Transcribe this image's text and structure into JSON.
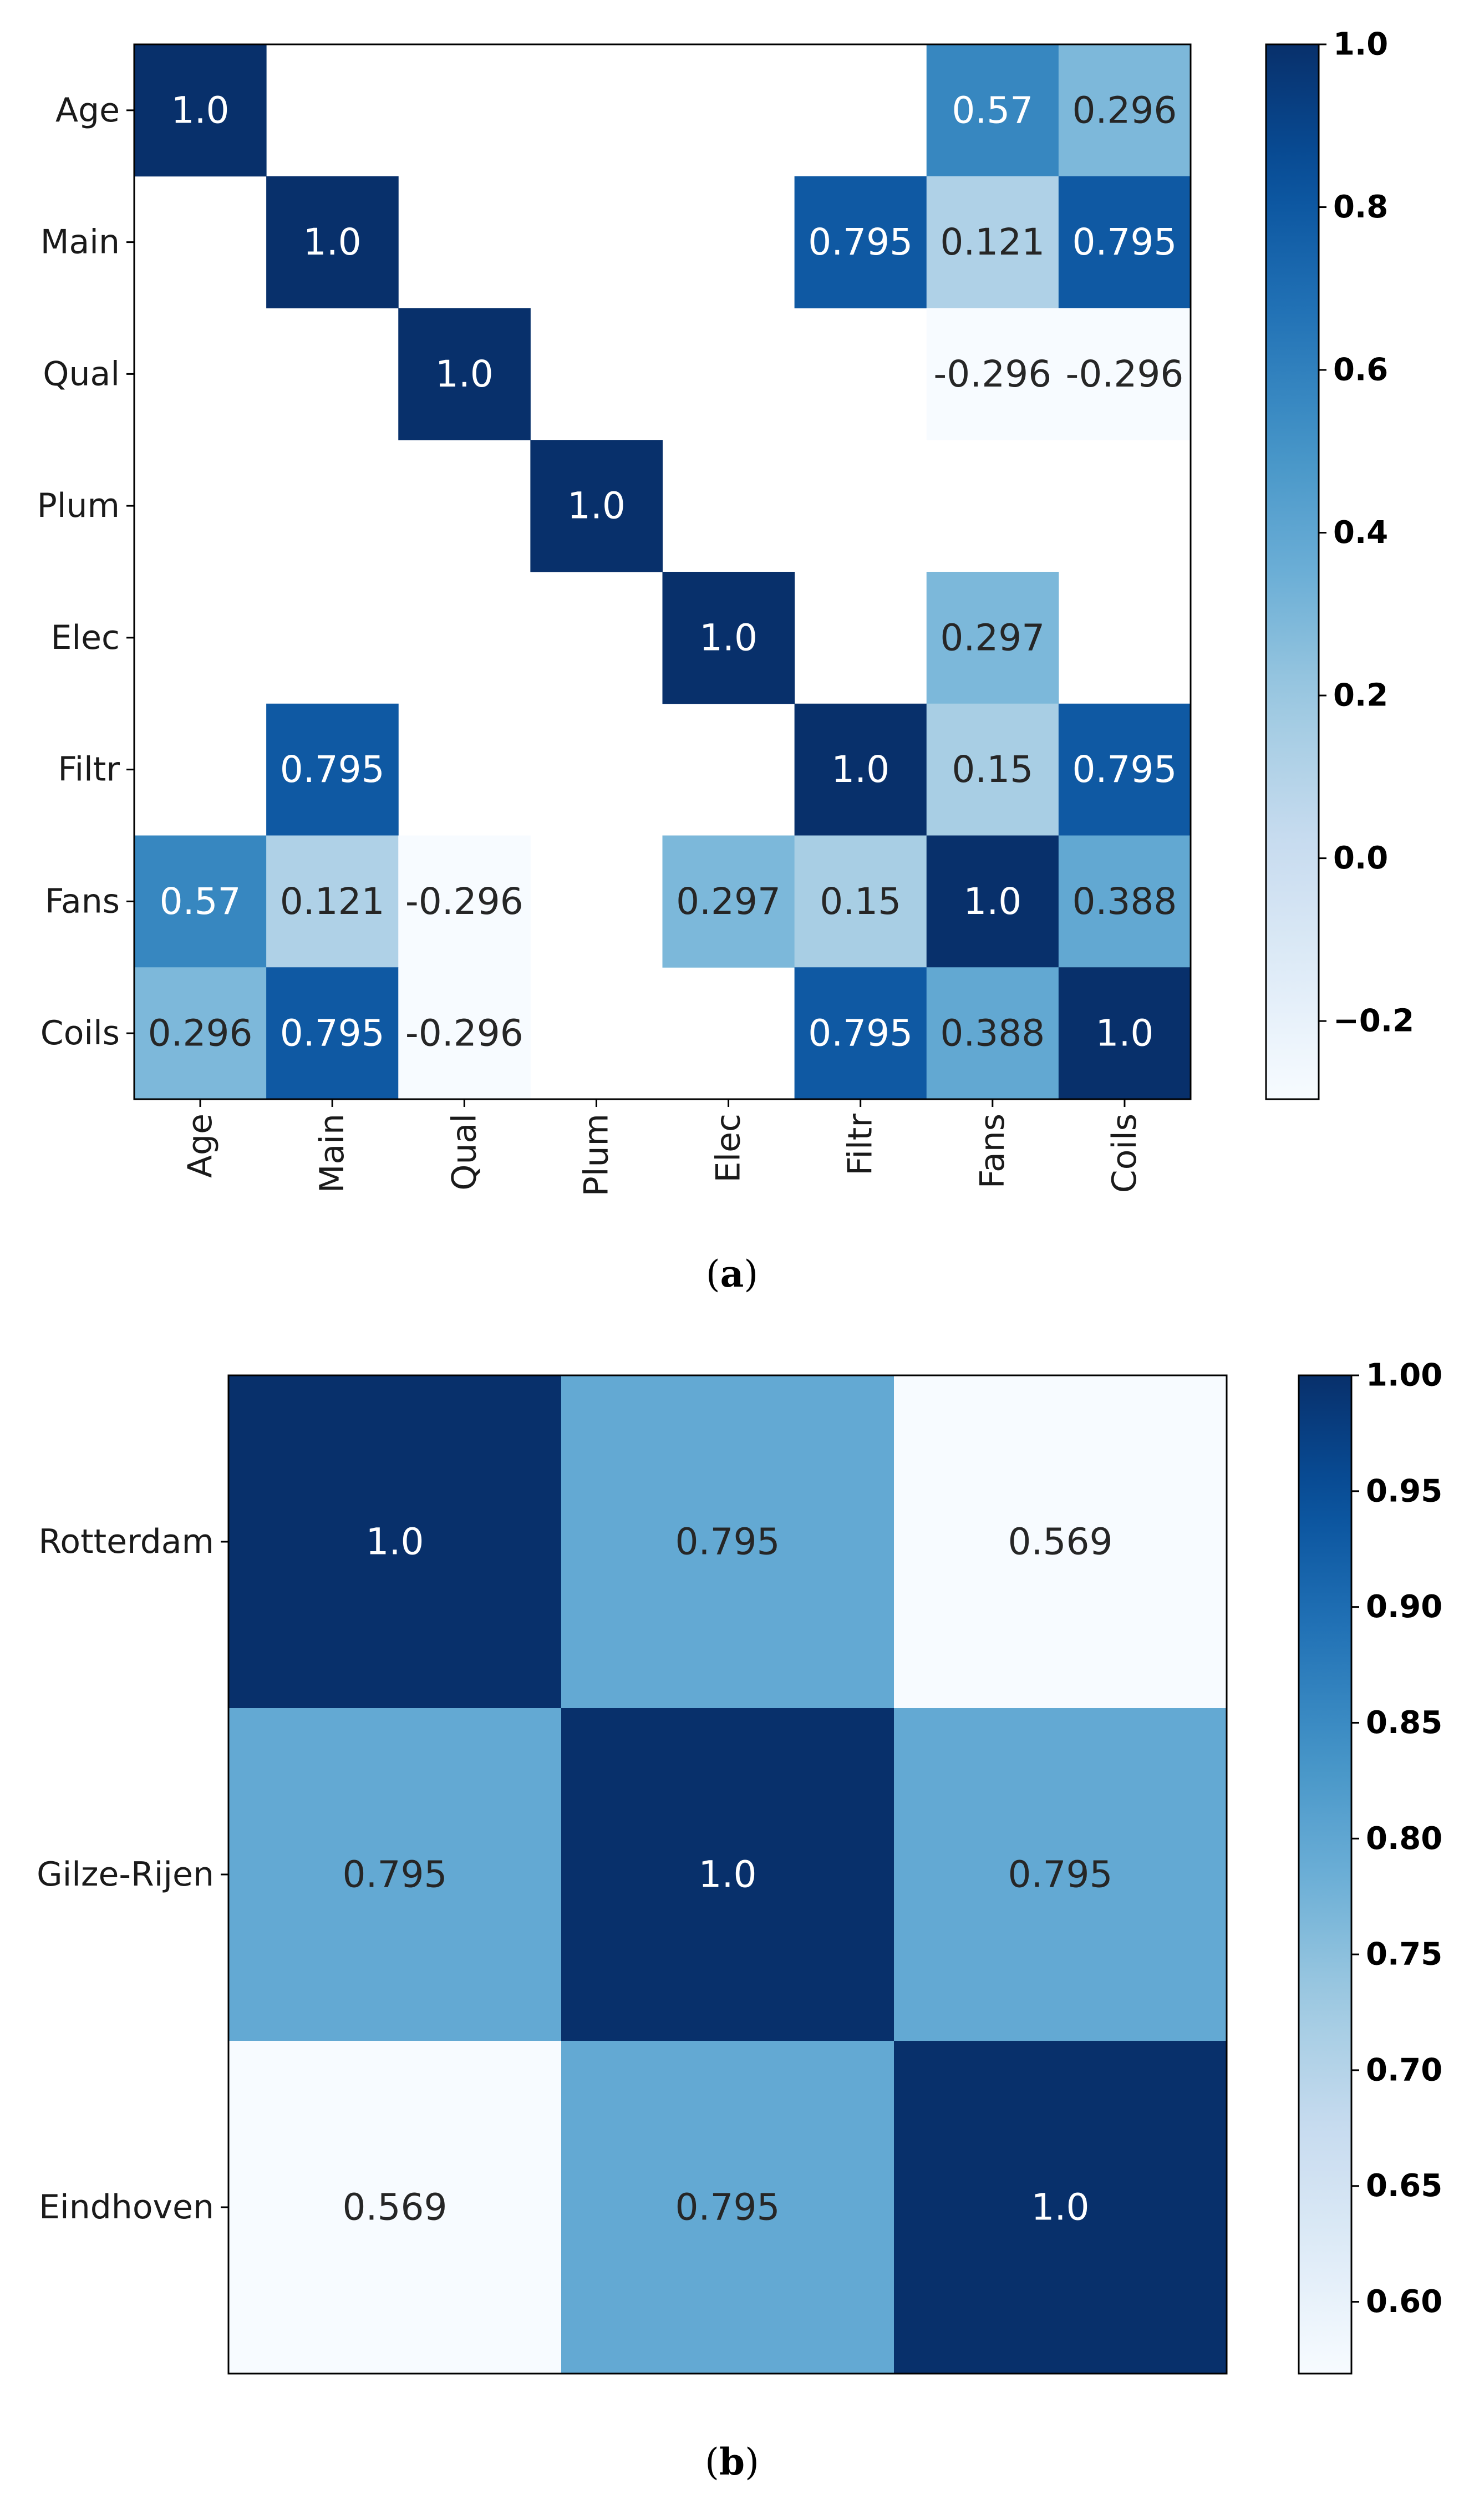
{
  "chart_data": [
    {
      "type": "heatmap",
      "caption_letter": "a",
      "labels": [
        "Age",
        "Main",
        "Qual",
        "Plum",
        "Elec",
        "Filtr",
        "Fans",
        "Coils"
      ],
      "matrix": [
        [
          1.0,
          null,
          null,
          null,
          null,
          null,
          0.57,
          0.296
        ],
        [
          null,
          1.0,
          null,
          null,
          null,
          0.795,
          0.121,
          0.795
        ],
        [
          null,
          null,
          1.0,
          null,
          null,
          null,
          -0.296,
          -0.296
        ],
        [
          null,
          null,
          null,
          1.0,
          null,
          null,
          null,
          null
        ],
        [
          null,
          null,
          null,
          null,
          1.0,
          null,
          0.297,
          null
        ],
        [
          null,
          0.795,
          null,
          null,
          null,
          1.0,
          0.15,
          0.795
        ],
        [
          0.57,
          0.121,
          -0.296,
          null,
          0.297,
          0.15,
          1.0,
          0.388
        ],
        [
          0.296,
          0.795,
          -0.296,
          null,
          null,
          0.795,
          0.388,
          1.0
        ]
      ],
      "value_labels": [
        [
          "1.0",
          "",
          "",
          "",
          "",
          "",
          "0.57",
          "0.296"
        ],
        [
          "",
          "1.0",
          "",
          "",
          "",
          "0.795",
          "0.121",
          "0.795"
        ],
        [
          "",
          "",
          "1.0",
          "",
          "",
          "",
          "-0.296",
          "-0.296"
        ],
        [
          "",
          "",
          "",
          "1.0",
          "",
          "",
          "",
          ""
        ],
        [
          "",
          "",
          "",
          "",
          "1.0",
          "",
          "0.297",
          ""
        ],
        [
          "",
          "0.795",
          "",
          "",
          "",
          "1.0",
          "0.15",
          "0.795"
        ],
        [
          "0.57",
          "0.121",
          "-0.296",
          "",
          "0.297",
          "0.15",
          "1.0",
          "0.388"
        ],
        [
          "0.296",
          "0.795",
          "-0.296",
          "",
          "",
          "0.795",
          "0.388",
          "1.0"
        ]
      ],
      "colorbar": {
        "min": -0.296,
        "max": 1.0,
        "ticks": [
          1.0,
          0.8,
          0.6,
          0.4,
          0.2,
          0.0,
          -0.2
        ],
        "tick_labels": [
          "1.0",
          "0.8",
          "0.6",
          "0.4",
          "0.2",
          "0.0",
          "−0.2"
        ]
      },
      "colormap": "Blues"
    },
    {
      "type": "heatmap",
      "caption_letter": "b",
      "labels": [
        "Rotterdam",
        "Gilze-Rijen",
        "Eindhoven"
      ],
      "matrix": [
        [
          1.0,
          0.795,
          0.569
        ],
        [
          0.795,
          1.0,
          0.795
        ],
        [
          0.569,
          0.795,
          1.0
        ]
      ],
      "value_labels": [
        [
          "1.0",
          "0.795",
          "0.569"
        ],
        [
          "0.795",
          "1.0",
          "0.795"
        ],
        [
          "0.569",
          "0.795",
          "1.0"
        ]
      ],
      "colorbar": {
        "min": 0.569,
        "max": 1.0,
        "ticks": [
          1.0,
          0.95,
          0.9,
          0.85,
          0.8,
          0.75,
          0.7,
          0.65,
          0.6
        ],
        "tick_labels": [
          "1.00",
          "0.95",
          "0.90",
          "0.85",
          "0.80",
          "0.75",
          "0.70",
          "0.65",
          "0.60"
        ]
      },
      "colormap": "Blues"
    }
  ],
  "colors": {
    "blues_stops": [
      "#f7fbff",
      "#deebf7",
      "#c6dbef",
      "#9ecae1",
      "#6baed6",
      "#4292c6",
      "#2171b5",
      "#08519c",
      "#08306b"
    ],
    "text_dark": "#262626",
    "text_light": "#ffffff"
  }
}
